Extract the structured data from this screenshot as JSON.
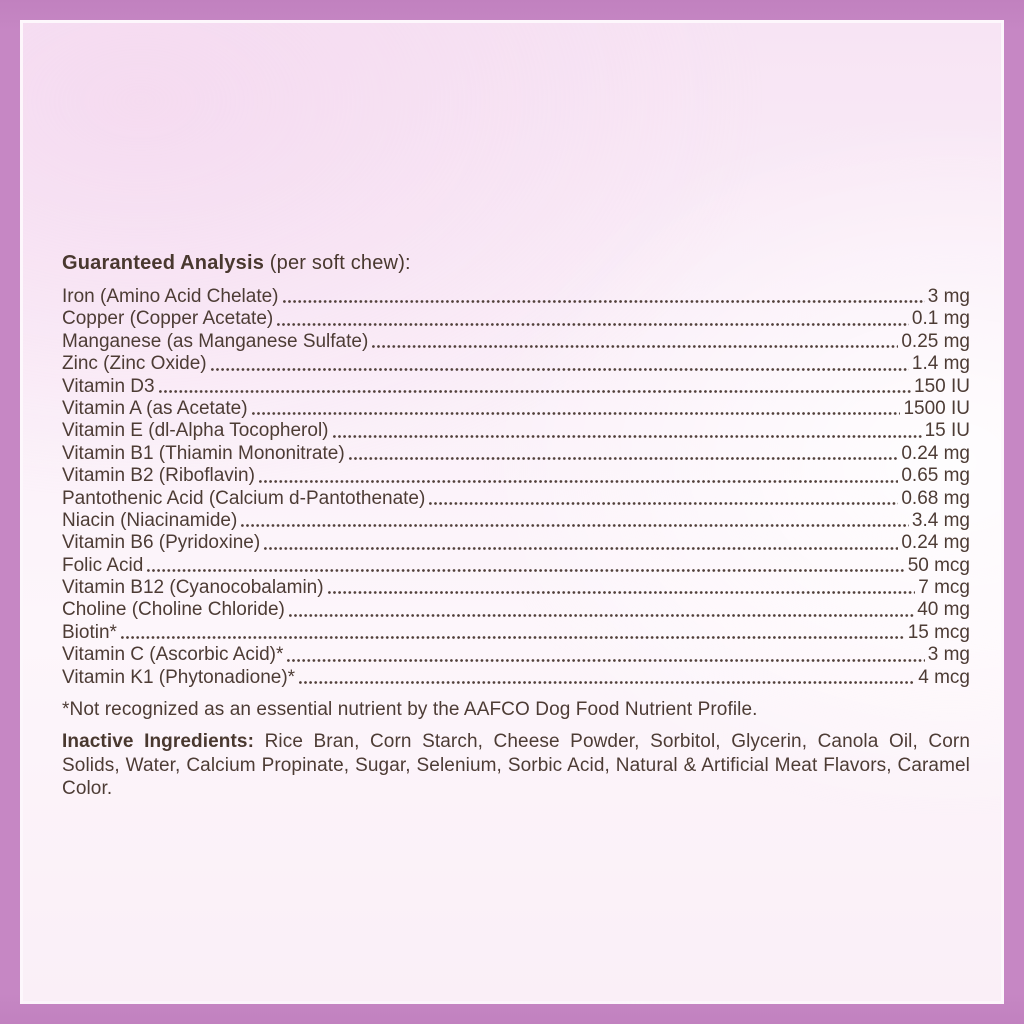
{
  "colors": {
    "border": "#c687c4",
    "background_tint": "#f8e6f5",
    "text": "#4d3c35"
  },
  "analysis": {
    "heading_bold": "Guaranteed Analysis",
    "heading_rest": "(per soft chew):",
    "rows": [
      {
        "name": "Iron (Amino Acid Chelate)",
        "value": "3 mg"
      },
      {
        "name": "Copper (Copper Acetate)",
        "value": "0.1 mg"
      },
      {
        "name": "Manganese (as Manganese Sulfate)",
        "value": "0.25 mg"
      },
      {
        "name": "Zinc (Zinc Oxide)",
        "value": "1.4 mg"
      },
      {
        "name": "Vitamin D3",
        "value": "150 IU"
      },
      {
        "name": "Vitamin A (as Acetate)",
        "value": "1500 IU"
      },
      {
        "name": "Vitamin E (dl-Alpha Tocopherol)",
        "value": "15 IU"
      },
      {
        "name": "Vitamin B1 (Thiamin Mononitrate)",
        "value": "0.24 mg"
      },
      {
        "name": "Vitamin B2 (Riboflavin)",
        "value": "0.65 mg"
      },
      {
        "name": "Pantothenic Acid (Calcium d-Pantothenate)",
        "value": "0.68 mg"
      },
      {
        "name": "Niacin (Niacinamide)",
        "value": "3.4 mg"
      },
      {
        "name": "Vitamin B6 (Pyridoxine)",
        "value": "0.24 mg"
      },
      {
        "name": "Folic Acid",
        "value": "50 mcg"
      },
      {
        "name": "Vitamin B12 (Cyanocobalamin)",
        "value": "7 mcg"
      },
      {
        "name": "Choline (Choline Chloride)",
        "value": "40 mg"
      },
      {
        "name": "Biotin*",
        "value": "15 mcg"
      },
      {
        "name": "Vitamin C (Ascorbic Acid)*",
        "value": "3 mg"
      },
      {
        "name": "Vitamin K1 (Phytonadione)*",
        "value": "4 mcg"
      }
    ],
    "footnote": "*Not recognized as an essential nutrient by the AAFCO Dog Food Nutrient Profile.",
    "inactive": {
      "heading": "Inactive Ingredients:",
      "text": "Rice Bran, Corn Starch, Cheese Powder, Sorbitol, Glycerin, Canola Oil, Corn Solids, Water, Calcium Propinate, Sugar, Selenium, Sorbic Acid, Natural & Artificial Meat Flavors, Caramel Color."
    }
  }
}
